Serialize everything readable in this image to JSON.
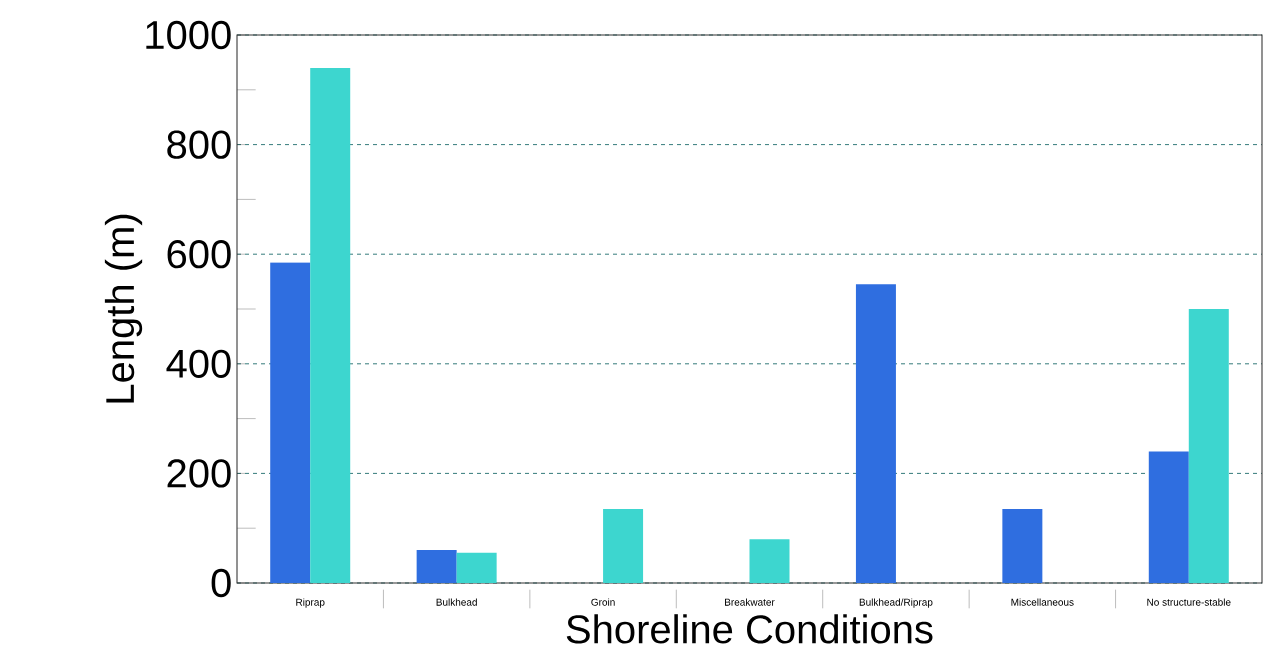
{
  "chart_data": {
    "type": "bar",
    "xlabel": "Shoreline Conditions",
    "ylabel": "Length (m)",
    "categories": [
      "Riprap",
      "Bulkhead",
      "Groin",
      "Breakwater",
      "Bulkhead/Riprap",
      "Miscellaneous",
      "No structure-stable"
    ],
    "series": [
      {
        "color": "#2f6ee0",
        "values": [
          585,
          60,
          null,
          null,
          545,
          135,
          240
        ]
      },
      {
        "color": "#3dd6cf",
        "values": [
          940,
          55,
          135,
          80,
          null,
          null,
          500
        ]
      }
    ],
    "ylim": [
      0,
      1000
    ],
    "yticks": [
      0,
      200,
      400,
      600,
      800,
      1000
    ],
    "grid": "y"
  }
}
